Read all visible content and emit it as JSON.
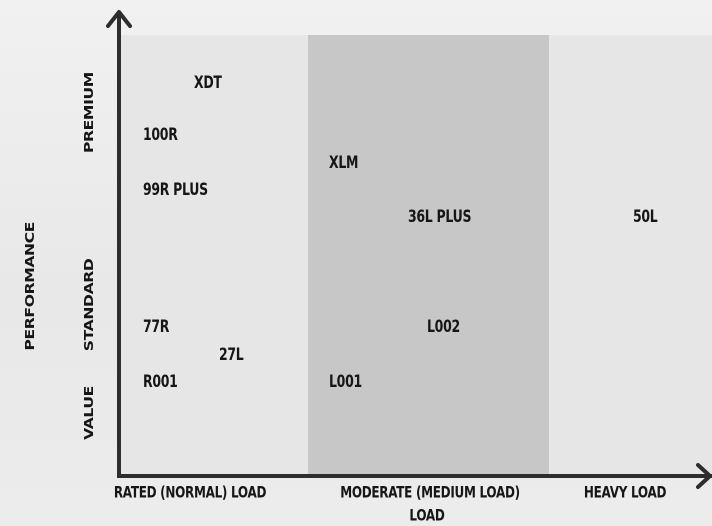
{
  "axes": {
    "y_title": "PERFORMANCE",
    "x_title": "LOAD",
    "y_levels": [
      "PREMIUM",
      "STANDARD",
      "VALUE"
    ],
    "x_levels": [
      "RATED (NORMAL) LOAD",
      "MODERATE (MEDIUM LOAD)",
      "HEAVY LOAD"
    ]
  },
  "products": [
    {
      "label": "XDT"
    },
    {
      "label": "100R"
    },
    {
      "label": "99R PLUS"
    },
    {
      "label": "XLM"
    },
    {
      "label": "36L PLUS"
    },
    {
      "label": "50L"
    },
    {
      "label": "77R"
    },
    {
      "label": "L002"
    },
    {
      "label": "27L"
    },
    {
      "label": "R001"
    },
    {
      "label": "L001"
    }
  ],
  "colors": {
    "panel_light": "#e6e6e6",
    "panel_moderate": "#c7c7c7",
    "axis": "#2d2d2d",
    "text": "#161616"
  }
}
